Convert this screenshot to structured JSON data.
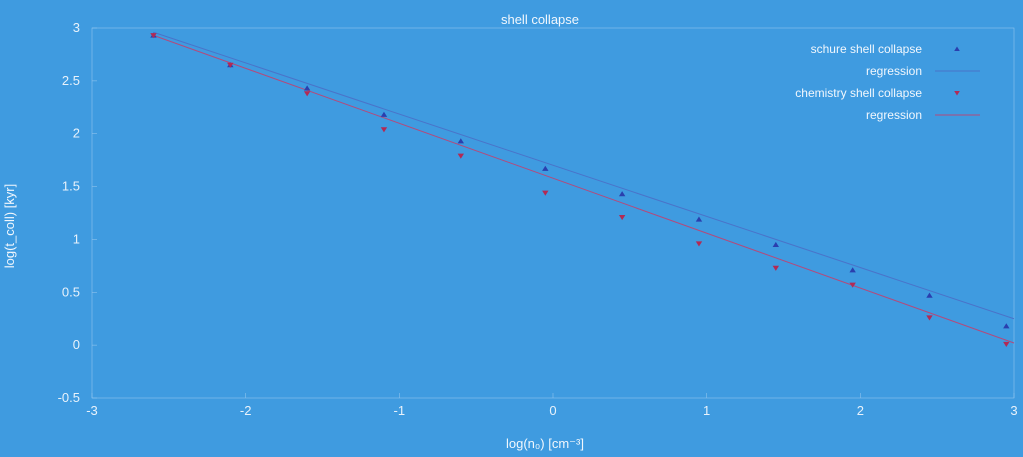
{
  "chart_data": {
    "type": "scatter",
    "title": "shell collapse",
    "xlabel": "log(n₀) [cm⁻³]",
    "ylabel": "log(t_coll) [kyr]",
    "xlim": [
      -3,
      3
    ],
    "ylim": [
      -0.5,
      3
    ],
    "xticks": [
      "-3",
      "-2",
      "-1",
      "0",
      "1",
      "2",
      "3"
    ],
    "yticks": [
      "-0.5",
      "0",
      "0.5",
      "1",
      "1.5",
      "2",
      "2.5",
      "3"
    ],
    "grid": false,
    "legend_position": "top-right",
    "series": [
      {
        "name": "schure shell collapse",
        "marker": "triangle",
        "color": "#2a3fae",
        "x": [
          -2.6,
          -2.1,
          -1.6,
          -1.1,
          -0.6,
          -0.05,
          0.45,
          0.95,
          1.45,
          1.95,
          2.45,
          2.95
        ],
        "y": [
          2.93,
          2.65,
          2.43,
          2.18,
          1.93,
          1.67,
          1.43,
          1.19,
          0.95,
          0.71,
          0.47,
          0.18
        ]
      },
      {
        "name": "regression",
        "type": "line",
        "color": "#4a73c9",
        "x": [
          -2.6,
          3.0
        ],
        "y": [
          2.96,
          0.25
        ]
      },
      {
        "name": "chemistry shell collapse",
        "marker": "triangle-down",
        "color": "#b22a55",
        "x": [
          -2.6,
          -2.1,
          -1.6,
          -1.1,
          -0.6,
          -0.05,
          0.45,
          0.95,
          1.45,
          1.95,
          2.45,
          2.95
        ],
        "y": [
          2.93,
          2.65,
          2.38,
          2.04,
          1.79,
          1.44,
          1.21,
          0.96,
          0.73,
          0.57,
          0.26,
          0.01
        ]
      },
      {
        "name": "regression",
        "type": "line",
        "color": "#b34a7c",
        "x": [
          -2.6,
          3.0
        ],
        "y": [
          2.93,
          0.02
        ]
      }
    ]
  }
}
